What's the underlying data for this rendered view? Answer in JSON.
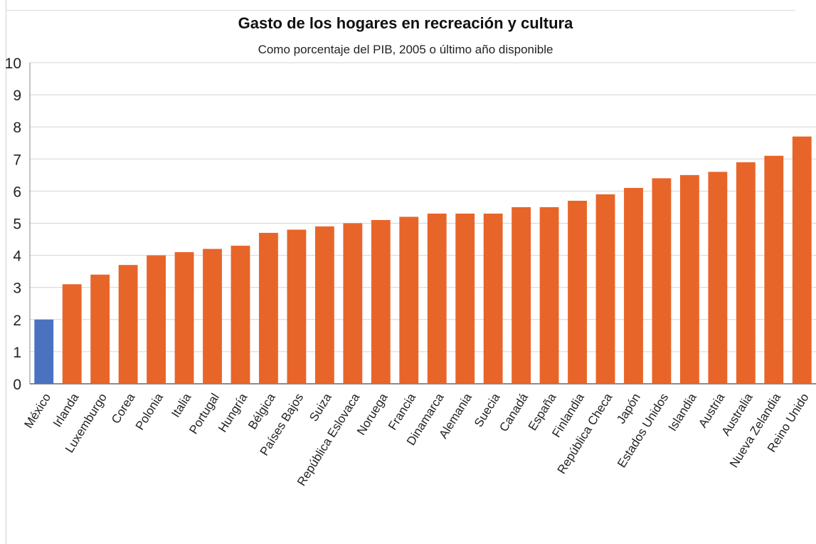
{
  "chart_data": {
    "type": "bar",
    "title": "Gasto de los hogares en recreación y cultura",
    "subtitle": "Como porcentaje del PIB, 2005 o último año disponible",
    "xlabel": "",
    "ylabel": "",
    "ylim": [
      0,
      10
    ],
    "yticks": [
      0,
      1,
      2,
      3,
      4,
      5,
      6,
      7,
      8,
      9,
      10
    ],
    "grid": true,
    "categories": [
      "México",
      "Irlanda",
      "Luxemburgo",
      "Corea",
      "Polonia",
      "Italia",
      "Portugal",
      "Hungría",
      "Bélgica",
      "Países Bajos",
      "Suiza",
      "República Eslovaca",
      "Noruega",
      "Francia",
      "Dinamarca",
      "Alemania",
      "Suecia",
      "Canadá",
      "España",
      "Finlandia",
      "República Checa",
      "Japón",
      "Estados Unidos",
      "Islandia",
      "Austria",
      "Australia",
      "Nueva Zelandia",
      "Reino Unido"
    ],
    "values": [
      2.0,
      3.1,
      3.4,
      3.7,
      4.0,
      4.1,
      4.2,
      4.3,
      4.7,
      4.8,
      4.9,
      5.0,
      5.1,
      5.2,
      5.3,
      5.3,
      5.3,
      5.5,
      5.5,
      5.7,
      5.9,
      6.1,
      6.4,
      6.5,
      6.6,
      6.9,
      7.1,
      7.7
    ],
    "colors": {
      "highlight": "#4a72c0",
      "default": "#e8652a",
      "highlight_category": "México"
    }
  }
}
